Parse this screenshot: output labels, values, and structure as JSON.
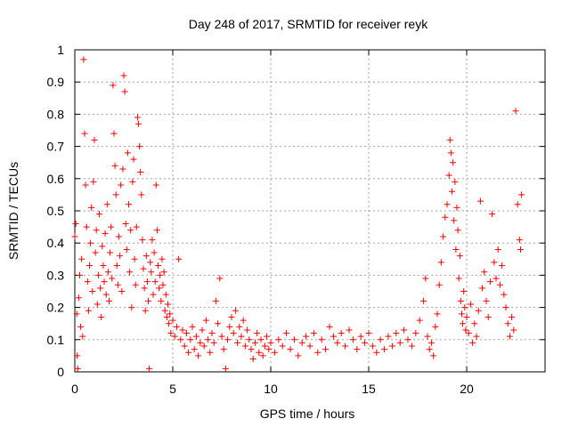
{
  "chart_data": {
    "type": "scatter",
    "title": "Day 248 of 2017, SRMTID for receiver reyk",
    "xlabel": "GPS time / hours",
    "ylabel": "SRMTID / TECUs",
    "xlim": [
      0,
      24
    ],
    "ylim": [
      0,
      1
    ],
    "x_ticks": [
      "0",
      "5",
      "10",
      "15",
      "20"
    ],
    "x_tick_values": [
      0,
      5,
      10,
      15,
      20
    ],
    "y_ticks": [
      "0",
      "0.1",
      "0.2",
      "0.3",
      "0.4",
      "0.5",
      "0.6",
      "0.7",
      "0.8",
      "0.9",
      "1"
    ],
    "y_tick_values": [
      0,
      0.1,
      0.2,
      0.3,
      0.4,
      0.5,
      0.6,
      0.7,
      0.8,
      0.9,
      1
    ],
    "grid": true,
    "marker": "+",
    "color": "#ff0000",
    "series": [
      {
        "name": "SRMTID",
        "points": [
          [
            0.0,
            0.42
          ],
          [
            0.05,
            0.46
          ],
          [
            0.1,
            0.18
          ],
          [
            0.12,
            0.05
          ],
          [
            0.15,
            0.01
          ],
          [
            0.2,
            0.23
          ],
          [
            0.25,
            0.3
          ],
          [
            0.3,
            0.14
          ],
          [
            0.35,
            0.35
          ],
          [
            0.4,
            0.11
          ],
          [
            0.45,
            0.97
          ],
          [
            0.5,
            0.74
          ],
          [
            0.55,
            0.58
          ],
          [
            0.6,
            0.45
          ],
          [
            0.65,
            0.28
          ],
          [
            0.7,
            0.19
          ],
          [
            0.75,
            0.33
          ],
          [
            0.8,
            0.4
          ],
          [
            0.85,
            0.51
          ],
          [
            0.9,
            0.25
          ],
          [
            0.95,
            0.59
          ],
          [
            1.0,
            0.72
          ],
          [
            1.05,
            0.37
          ],
          [
            1.1,
            0.44
          ],
          [
            1.15,
            0.21
          ],
          [
            1.2,
            0.3
          ],
          [
            1.25,
            0.49
          ],
          [
            1.3,
            0.26
          ],
          [
            1.35,
            0.17
          ],
          [
            1.4,
            0.39
          ],
          [
            1.45,
            0.33
          ],
          [
            1.5,
            0.28
          ],
          [
            1.55,
            0.43
          ],
          [
            1.6,
            0.24
          ],
          [
            1.65,
            0.52
          ],
          [
            1.7,
            0.31
          ],
          [
            1.75,
            0.22
          ],
          [
            1.8,
            0.37
          ],
          [
            1.85,
            0.45
          ],
          [
            1.9,
            0.29
          ],
          [
            1.95,
            0.89
          ],
          [
            2.0,
            0.74
          ],
          [
            2.05,
            0.64
          ],
          [
            2.1,
            0.55
          ],
          [
            2.15,
            0.33
          ],
          [
            2.2,
            0.27
          ],
          [
            2.25,
            0.42
          ],
          [
            2.3,
            0.36
          ],
          [
            2.35,
            0.58
          ],
          [
            2.4,
            0.25
          ],
          [
            2.45,
            0.63
          ],
          [
            2.5,
            0.92
          ],
          [
            2.55,
            0.87
          ],
          [
            2.6,
            0.46
          ],
          [
            2.65,
            0.38
          ],
          [
            2.7,
            0.68
          ],
          [
            2.75,
            0.52
          ],
          [
            2.8,
            0.31
          ],
          [
            2.85,
            0.44
          ],
          [
            2.9,
            0.2
          ],
          [
            2.95,
            0.59
          ],
          [
            3.0,
            0.66
          ],
          [
            3.05,
            0.35
          ],
          [
            3.1,
            0.27
          ],
          [
            3.15,
            0.45
          ],
          [
            3.2,
            0.79
          ],
          [
            3.25,
            0.77
          ],
          [
            3.3,
            0.7
          ],
          [
            3.35,
            0.62
          ],
          [
            3.4,
            0.55
          ],
          [
            3.45,
            0.41
          ],
          [
            3.5,
            0.32
          ],
          [
            3.55,
            0.26
          ],
          [
            3.6,
            0.19
          ],
          [
            3.65,
            0.36
          ],
          [
            3.7,
            0.28
          ],
          [
            3.75,
            0.22
          ],
          [
            3.8,
            0.01
          ],
          [
            3.85,
            0.34
          ],
          [
            3.9,
            0.31
          ],
          [
            3.95,
            0.41
          ],
          [
            4.0,
            0.24
          ],
          [
            4.05,
            0.37
          ],
          [
            4.1,
            0.28
          ],
          [
            4.15,
            0.58
          ],
          [
            4.2,
            0.44
          ],
          [
            4.25,
            0.33
          ],
          [
            4.3,
            0.26
          ],
          [
            4.35,
            0.3
          ],
          [
            4.4,
            0.22
          ],
          [
            4.45,
            0.35
          ],
          [
            4.5,
            0.27
          ],
          [
            4.55,
            0.31
          ],
          [
            4.6,
            0.19
          ],
          [
            4.65,
            0.24
          ],
          [
            4.7,
            0.17
          ],
          [
            4.75,
            0.21
          ],
          [
            4.8,
            0.15
          ],
          [
            4.85,
            0.18
          ],
          [
            4.9,
            0.12
          ],
          [
            5.0,
            0.16
          ],
          [
            5.1,
            0.11
          ],
          [
            5.2,
            0.14
          ],
          [
            5.3,
            0.35
          ],
          [
            5.4,
            0.1
          ],
          [
            5.5,
            0.13
          ],
          [
            5.6,
            0.08
          ],
          [
            5.7,
            0.12
          ],
          [
            5.8,
            0.06
          ],
          [
            5.9,
            0.1
          ],
          [
            6.0,
            0.14
          ],
          [
            6.1,
            0.07
          ],
          [
            6.2,
            0.11
          ],
          [
            6.3,
            0.05
          ],
          [
            6.4,
            0.09
          ],
          [
            6.5,
            0.13
          ],
          [
            6.6,
            0.08
          ],
          [
            6.7,
            0.16
          ],
          [
            6.8,
            0.1
          ],
          [
            6.9,
            0.06
          ],
          [
            7.0,
            0.12
          ],
          [
            7.1,
            0.09
          ],
          [
            7.2,
            0.22
          ],
          [
            7.3,
            0.15
          ],
          [
            7.4,
            0.29
          ],
          [
            7.5,
            0.11
          ],
          [
            7.6,
            0.07
          ],
          [
            7.7,
            0.01
          ],
          [
            7.8,
            0.1
          ],
          [
            7.9,
            0.14
          ],
          [
            8.0,
            0.17
          ],
          [
            8.1,
            0.12
          ],
          [
            8.2,
            0.19
          ],
          [
            8.3,
            0.09
          ],
          [
            8.4,
            0.14
          ],
          [
            8.5,
            0.11
          ],
          [
            8.6,
            0.16
          ],
          [
            8.7,
            0.08
          ],
          [
            8.8,
            0.13
          ],
          [
            8.9,
            0.1
          ],
          [
            9.0,
            0.07
          ],
          [
            9.1,
            0.04
          ],
          [
            9.2,
            0.09
          ],
          [
            9.3,
            0.12
          ],
          [
            9.4,
            0.06
          ],
          [
            9.5,
            0.1
          ],
          [
            9.6,
            0.05
          ],
          [
            9.7,
            0.08
          ],
          [
            9.8,
            0.11
          ],
          [
            9.9,
            0.07
          ],
          [
            10.0,
            0.09
          ],
          [
            10.2,
            0.06
          ],
          [
            10.4,
            0.1
          ],
          [
            10.6,
            0.08
          ],
          [
            10.8,
            0.12
          ],
          [
            11.0,
            0.07
          ],
          [
            11.2,
            0.1
          ],
          [
            11.4,
            0.05
          ],
          [
            11.6,
            0.09
          ],
          [
            11.8,
            0.11
          ],
          [
            12.0,
            0.08
          ],
          [
            12.2,
            0.12
          ],
          [
            12.4,
            0.06
          ],
          [
            12.6,
            0.1
          ],
          [
            12.8,
            0.07
          ],
          [
            13.0,
            0.14
          ],
          [
            13.2,
            0.11
          ],
          [
            13.4,
            0.09
          ],
          [
            13.6,
            0.12
          ],
          [
            13.8,
            0.08
          ],
          [
            14.0,
            0.13
          ],
          [
            14.2,
            0.1
          ],
          [
            14.4,
            0.07
          ],
          [
            14.6,
            0.11
          ],
          [
            14.8,
            0.09
          ],
          [
            15.0,
            0.12
          ],
          [
            15.2,
            0.08
          ],
          [
            15.4,
            0.06
          ],
          [
            15.6,
            0.1
          ],
          [
            15.8,
            0.07
          ],
          [
            16.0,
            0.11
          ],
          [
            16.2,
            0.08
          ],
          [
            16.4,
            0.12
          ],
          [
            16.6,
            0.09
          ],
          [
            16.8,
            0.13
          ],
          [
            17.0,
            0.1
          ],
          [
            17.2,
            0.08
          ],
          [
            17.4,
            0.12
          ],
          [
            17.6,
            0.16
          ],
          [
            17.8,
            0.22
          ],
          [
            17.9,
            0.29
          ],
          [
            18.0,
            0.11
          ],
          [
            18.1,
            0.07
          ],
          [
            18.2,
            0.09
          ],
          [
            18.3,
            0.05
          ],
          [
            18.4,
            0.14
          ],
          [
            18.5,
            0.18
          ],
          [
            18.6,
            0.27
          ],
          [
            18.7,
            0.34
          ],
          [
            18.8,
            0.42
          ],
          [
            18.9,
            0.48
          ],
          [
            19.0,
            0.52
          ],
          [
            19.1,
            0.61
          ],
          [
            19.15,
            0.72
          ],
          [
            19.2,
            0.68
          ],
          [
            19.25,
            0.56
          ],
          [
            19.3,
            0.65
          ],
          [
            19.35,
            0.47
          ],
          [
            19.4,
            0.59
          ],
          [
            19.45,
            0.38
          ],
          [
            19.5,
            0.51
          ],
          [
            19.55,
            0.44
          ],
          [
            19.6,
            0.29
          ],
          [
            19.65,
            0.36
          ],
          [
            19.7,
            0.22
          ],
          [
            19.75,
            0.18
          ],
          [
            19.8,
            0.15
          ],
          [
            19.85,
            0.25
          ],
          [
            19.9,
            0.2
          ],
          [
            19.95,
            0.13
          ],
          [
            20.0,
            0.17
          ],
          [
            20.1,
            0.12
          ],
          [
            20.2,
            0.21
          ],
          [
            20.3,
            0.09
          ],
          [
            20.4,
            0.15
          ],
          [
            20.5,
            0.11
          ],
          [
            20.6,
            0.19
          ],
          [
            20.7,
            0.53
          ],
          [
            20.8,
            0.26
          ],
          [
            20.9,
            0.31
          ],
          [
            21.0,
            0.22
          ],
          [
            21.1,
            0.17
          ],
          [
            21.2,
            0.28
          ],
          [
            21.3,
            0.49
          ],
          [
            21.4,
            0.34
          ],
          [
            21.5,
            0.29
          ],
          [
            21.6,
            0.38
          ],
          [
            21.7,
            0.27
          ],
          [
            21.8,
            0.33
          ],
          [
            21.9,
            0.24
          ],
          [
            22.0,
            0.2
          ],
          [
            22.1,
            0.15
          ],
          [
            22.2,
            0.11
          ],
          [
            22.3,
            0.17
          ],
          [
            22.4,
            0.13
          ],
          [
            22.5,
            0.81
          ],
          [
            22.6,
            0.52
          ],
          [
            22.7,
            0.41
          ],
          [
            22.75,
            0.38
          ],
          [
            22.8,
            0.55
          ]
        ]
      }
    ]
  }
}
